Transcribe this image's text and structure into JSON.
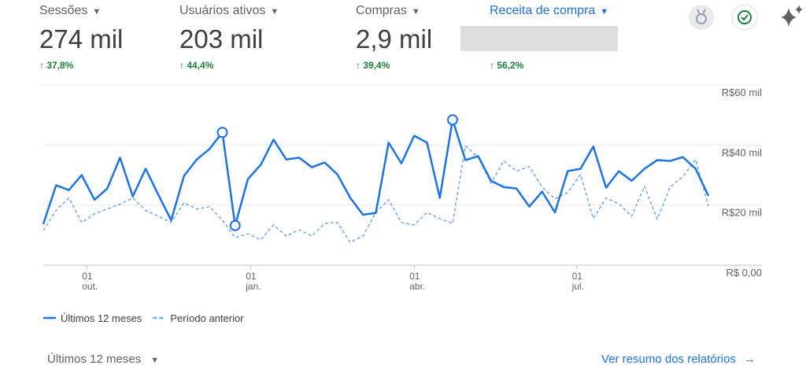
{
  "metrics": [
    {
      "label": "Sessões",
      "value": "274 mil",
      "change": "37,8%"
    },
    {
      "label": "Usuários ativos",
      "value": "203 mil",
      "change": "44,4%"
    },
    {
      "label": "Compras",
      "value": "2,9 mil",
      "change": "39,4%"
    },
    {
      "label": "Receita de compra",
      "change": "56,2%"
    }
  ],
  "chart_data": {
    "type": "line",
    "categories": [
      null,
      null,
      null,
      null,
      null,
      null,
      null,
      null,
      null,
      null,
      null,
      null,
      null,
      null,
      null,
      null,
      null,
      null,
      null,
      null,
      null,
      null,
      null,
      null,
      null,
      null,
      null,
      null,
      null,
      null,
      null,
      null,
      null,
      null,
      null,
      null,
      null,
      null,
      null,
      null,
      null,
      null,
      null,
      null,
      null,
      null,
      null,
      null,
      null,
      null,
      null,
      null,
      null
    ],
    "xlim": [
      0,
      52
    ],
    "xticks": [
      {
        "value": 3.4,
        "label": [
          "01",
          "out."
        ]
      },
      {
        "value": 16.2,
        "label": [
          "01",
          "jan."
        ]
      },
      {
        "value": 29,
        "label": [
          "01",
          "abr."
        ]
      },
      {
        "value": 41.7,
        "label": [
          "01",
          "jul."
        ]
      }
    ],
    "ylim": [
      0,
      60000
    ],
    "yticks": [
      {
        "value": 0,
        "label": "R$ 0,00"
      },
      {
        "value": 20000,
        "label": "R$20 mil"
      },
      {
        "value": 40000,
        "label": "R$40 mil"
      },
      {
        "value": 60000,
        "label": "R$60 mil"
      }
    ],
    "grid": true,
    "series": [
      {
        "name": "Últimos 12 meses",
        "color": "#1a73e8",
        "style": "solid",
        "highlighted_points": [
          14,
          15,
          32
        ],
        "values": [
          13700,
          26600,
          25000,
          30000,
          21800,
          25500,
          35800,
          22900,
          32100,
          23400,
          15000,
          29700,
          35200,
          38700,
          44200,
          13200,
          28700,
          33400,
          41800,
          35200,
          35800,
          32600,
          34200,
          30200,
          22400,
          16800,
          17400,
          40800,
          33900,
          43100,
          40800,
          22400,
          48400,
          35000,
          36300,
          28100,
          26000,
          25500,
          19500,
          24500,
          17600,
          31300,
          32100,
          39500,
          25800,
          31300,
          28100,
          32100,
          35000,
          34700,
          36000,
          32100,
          23100
        ]
      },
      {
        "name": "Período anterior",
        "color": "#6ea8f0",
        "style": "dashed",
        "values": [
          11600,
          18200,
          22400,
          14200,
          17100,
          18700,
          20300,
          22400,
          18200,
          16300,
          14200,
          20800,
          18700,
          19500,
          15000,
          9200,
          10500,
          8400,
          13400,
          9700,
          11800,
          9700,
          13900,
          14200,
          7600,
          9700,
          17600,
          21800,
          14200,
          13400,
          17600,
          15500,
          13900,
          39700,
          36000,
          27400,
          34700,
          31300,
          32900,
          26000,
          22100,
          24200,
          30200,
          15500,
          22400,
          20500,
          16300,
          26300,
          15300,
          26000,
          29500,
          35200,
          19700
        ]
      }
    ]
  },
  "footer": {
    "period": "Últimos 12 meses",
    "link": "Ver resumo dos relatórios"
  }
}
